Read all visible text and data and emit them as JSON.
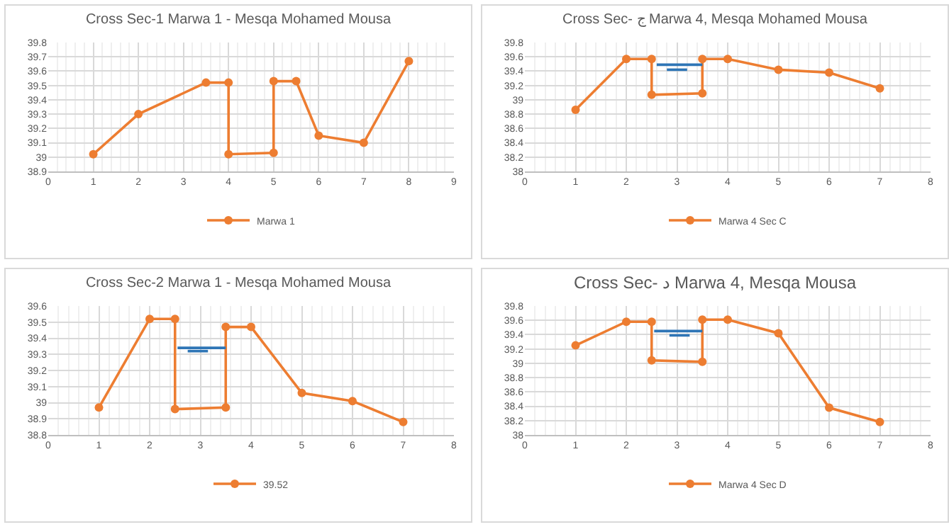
{
  "chart_data": [
    {
      "type": "line",
      "title": "Cross Sec-1 Marwa 1 - Mesqa Mohamed Mousa",
      "xlim": [
        0,
        9
      ],
      "xticks": [
        0,
        1,
        2,
        3,
        4,
        5,
        6,
        7,
        8,
        9
      ],
      "ylim": [
        38.9,
        39.8
      ],
      "yticks": [
        38.9,
        39,
        39.1,
        39.2,
        39.3,
        39.4,
        39.5,
        39.6,
        39.7,
        39.8
      ],
      "grid": true,
      "legend": "bottom",
      "marker": "circle",
      "series": [
        {
          "name": "Marwa 1",
          "color": "#ed7d31",
          "x": [
            1,
            2,
            3.5,
            4,
            4,
            5,
            5,
            5.5,
            6,
            7,
            8
          ],
          "values": [
            39.02,
            39.3,
            39.52,
            39.52,
            39.02,
            39.03,
            39.53,
            39.53,
            39.15,
            39.1,
            39.67
          ]
        }
      ]
    },
    {
      "type": "line",
      "title": "Cross Sec- ج Marwa 4, Mesqa Mohamed Mousa",
      "xlim": [
        0,
        8
      ],
      "xticks": [
        0,
        1,
        2,
        3,
        4,
        5,
        6,
        7,
        8
      ],
      "ylim": [
        38,
        39.8
      ],
      "yticks": [
        38,
        38.2,
        38.4,
        38.6,
        38.8,
        39,
        39.2,
        39.4,
        39.6,
        39.8
      ],
      "grid": true,
      "legend": "bottom",
      "marker": "circle",
      "series": [
        {
          "name": "Marwa 4 Sec C",
          "color": "#ed7d31",
          "x": [
            1,
            2,
            2.5,
            2.5,
            3.5,
            3.5,
            4,
            5,
            6,
            7
          ],
          "values": [
            38.86,
            39.57,
            39.57,
            39.07,
            39.09,
            39.57,
            39.57,
            39.42,
            39.38,
            39.16
          ]
        },
        {
          "color": "#2e75b6",
          "marker": "none",
          "x": [
            2.6,
            3.5
          ],
          "values": [
            39.49,
            39.49
          ]
        },
        {
          "color": "#2e75b6",
          "marker": "none",
          "x": [
            2.8,
            3.2
          ],
          "values": [
            39.42,
            39.42
          ]
        }
      ]
    },
    {
      "type": "line",
      "title": "Cross Sec-2 Marwa 1 - Mesqa Mohamed Mousa",
      "xlim": [
        0,
        8
      ],
      "xticks": [
        0,
        1,
        2,
        3,
        4,
        5,
        6,
        7,
        8
      ],
      "ylim": [
        38.8,
        39.6
      ],
      "yticks": [
        38.8,
        38.9,
        39,
        39.1,
        39.2,
        39.3,
        39.4,
        39.5,
        39.6
      ],
      "grid": true,
      "legend": "bottom",
      "marker": "circle",
      "series": [
        {
          "name": "39.52",
          "color": "#ed7d31",
          "x": [
            1,
            2,
            2.5,
            2.5,
            3.5,
            3.5,
            4,
            5,
            6,
            7
          ],
          "values": [
            38.97,
            39.52,
            39.52,
            38.96,
            38.97,
            39.47,
            39.47,
            39.06,
            39.01,
            38.88
          ]
        },
        {
          "color": "#2e75b6",
          "marker": "none",
          "x": [
            2.55,
            3.5
          ],
          "values": [
            39.34,
            39.34
          ]
        },
        {
          "color": "#2e75b6",
          "marker": "none",
          "x": [
            2.75,
            3.15
          ],
          "values": [
            39.32,
            39.32
          ]
        }
      ]
    },
    {
      "type": "line",
      "title": "Cross Sec- د Marwa 4, Mesqa Mousa",
      "xlim": [
        0,
        8
      ],
      "xticks": [
        0,
        1,
        2,
        3,
        4,
        5,
        6,
        7,
        8
      ],
      "ylim": [
        38,
        39.8
      ],
      "yticks": [
        38,
        38.2,
        38.4,
        38.6,
        38.8,
        39,
        39.2,
        39.4,
        39.6,
        39.8
      ],
      "grid": true,
      "legend": "bottom",
      "marker": "circle",
      "series": [
        {
          "name": "Marwa 4 Sec D",
          "color": "#ed7d31",
          "x": [
            1,
            2,
            2.5,
            2.5,
            3.5,
            3.5,
            4,
            5,
            6,
            7
          ],
          "values": [
            39.25,
            39.58,
            39.58,
            39.04,
            39.02,
            39.61,
            39.61,
            39.42,
            38.38,
            38.18
          ]
        },
        {
          "color": "#2e75b6",
          "marker": "none",
          "x": [
            2.55,
            3.5
          ],
          "values": [
            39.45,
            39.45
          ]
        },
        {
          "color": "#2e75b6",
          "marker": "none",
          "x": [
            2.85,
            3.25
          ],
          "values": [
            39.39,
            39.39
          ]
        }
      ]
    }
  ]
}
